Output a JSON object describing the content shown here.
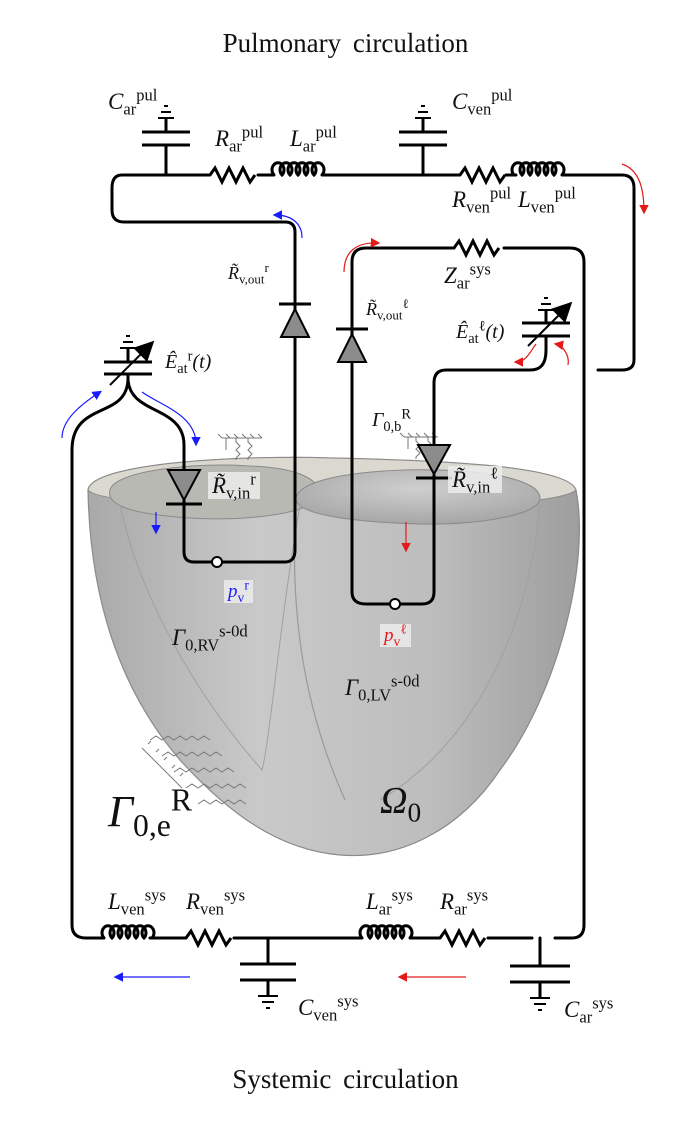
{
  "captions": {
    "top": "Pulmonary circulation",
    "bottom": "Systemic circulation"
  },
  "labels": {
    "c_ar_pul": {
      "sym": "C",
      "sup": "pul",
      "sub": "ar"
    },
    "r_ar_pul": {
      "sym": "R",
      "sup": "pul",
      "sub": "ar"
    },
    "l_ar_pul": {
      "sym": "L",
      "sup": "pul",
      "sub": "ar"
    },
    "c_ven_pul": {
      "sym": "C",
      "sup": "pul",
      "sub": "ven"
    },
    "r_ven_pul": {
      "sym": "R",
      "sup": "pul",
      "sub": "ven"
    },
    "l_ven_pul": {
      "sym": "L",
      "sup": "pul",
      "sub": "ven"
    },
    "z_ar_sys": {
      "sym": "Z",
      "sup": "sys",
      "sub": "ar"
    },
    "r_v_out_r": {
      "sym": "R̃",
      "sup": "r",
      "sub": "v,out"
    },
    "r_v_out_l": {
      "sym": "R̃",
      "sup": "ℓ",
      "sub": "v,out"
    },
    "e_at_r": {
      "sym": "Ê",
      "sup": "r",
      "sub": "at",
      "arg": "(t)"
    },
    "e_at_l": {
      "sym": "Ê",
      "sup": "ℓ",
      "sub": "at",
      "arg": "(t)"
    },
    "r_v_in_r": {
      "sym": "R̃",
      "sup": "r",
      "sub": "v,in"
    },
    "r_v_in_l": {
      "sym": "R̃",
      "sup": "ℓ",
      "sub": "v,in"
    },
    "gamma_0b": {
      "sym": "Γ",
      "sup": "R",
      "sub": "0,b"
    },
    "p_v_r": {
      "sym": "p",
      "sup": "r",
      "sub": "v"
    },
    "p_v_l": {
      "sym": "p",
      "sup": "ℓ",
      "sub": "v"
    },
    "gamma_rv": {
      "sym": "Γ",
      "sup": "s-0d",
      "sub": "0,RV"
    },
    "gamma_lv": {
      "sym": "Γ",
      "sup": "s-0d",
      "sub": "0,LV"
    },
    "gamma_0e": {
      "sym": "Γ",
      "sup": "R",
      "sub": "0,e"
    },
    "omega_0": {
      "sym": "Ω",
      "sub": "0"
    },
    "l_ven_sys": {
      "sym": "L",
      "sup": "sys",
      "sub": "ven"
    },
    "r_ven_sys": {
      "sym": "R",
      "sup": "sys",
      "sub": "ven"
    },
    "l_ar_sys": {
      "sym": "L",
      "sup": "sys",
      "sub": "ar"
    },
    "r_ar_sys": {
      "sym": "R",
      "sup": "sys",
      "sub": "ar"
    },
    "c_ven_sys": {
      "sym": "C",
      "sup": "sys",
      "sub": "ven"
    },
    "c_ar_sys": {
      "sym": "C",
      "sup": "sys",
      "sub": "ar"
    }
  },
  "colors": {
    "wire": "#000000",
    "venous_flow": "#1a1aff",
    "arterial_flow": "#e31a1a",
    "tissue": "#b8b8b8",
    "valve_fill": "#8c8c8c"
  }
}
